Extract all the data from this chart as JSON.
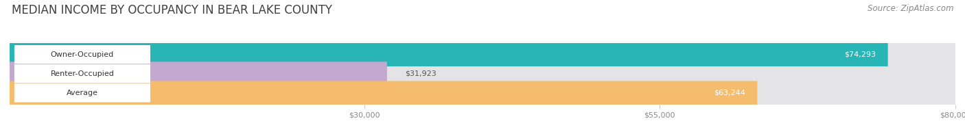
{
  "title": "MEDIAN INCOME BY OCCUPANCY IN BEAR LAKE COUNTY",
  "source": "Source: ZipAtlas.com",
  "categories": [
    "Owner-Occupied",
    "Renter-Occupied",
    "Average"
  ],
  "values": [
    74293,
    31923,
    63244
  ],
  "bar_colors": [
    "#29b5b5",
    "#c4a8d0",
    "#f5bc6e"
  ],
  "bar_labels": [
    "$74,293",
    "$31,923",
    "$63,244"
  ],
  "xlim": [
    0,
    80000
  ],
  "xticks": [
    30000,
    55000,
    80000
  ],
  "xtick_labels": [
    "$30,000",
    "$55,000",
    "$80,000"
  ],
  "title_fontsize": 12,
  "source_fontsize": 8.5,
  "label_fontsize": 8,
  "value_fontsize": 8,
  "bar_height": 0.62,
  "background_color": "#ffffff",
  "bar_bg_color": "#e4e4e6",
  "title_color": "#404040",
  "tick_color": "#888888",
  "label_bg_color": "#ffffff",
  "value_label_color": "#ffffff",
  "renter_value_color": "#555555"
}
